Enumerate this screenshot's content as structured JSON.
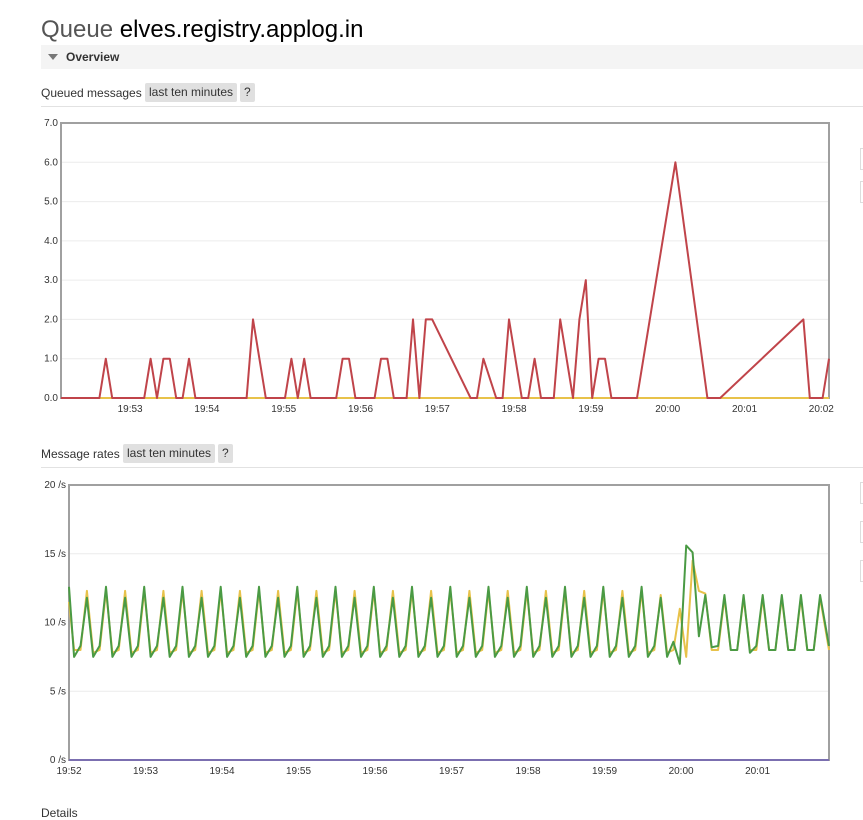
{
  "header": {
    "prefix": "Queue",
    "name": "elves.registry.applog.in"
  },
  "overview": {
    "label": "Overview"
  },
  "queued_section": {
    "label": "Queued messages",
    "range": "last ten minutes",
    "help": "?"
  },
  "rates_section": {
    "label": "Message rates",
    "range": "last ten minutes",
    "help": "?"
  },
  "details_label": "Details",
  "colors": {
    "red": "#c0444a",
    "yellow": "#e8c24a",
    "green": "#4a9a44",
    "purple": "#7b6fb0"
  },
  "chart_data": [
    {
      "type": "line",
      "title": "",
      "ylim": [
        0,
        7
      ],
      "yticks": [
        "0.0",
        "1.0",
        "2.0",
        "3.0",
        "4.0",
        "5.0",
        "6.0",
        "7.0"
      ],
      "xticks": [
        "19:53",
        "19:54",
        "19:55",
        "19:56",
        "19:57",
        "19:58",
        "19:59",
        "20:00",
        "20:01",
        "20:02"
      ],
      "xstart": "19:52:06",
      "xend": "20:02:06",
      "grid": true,
      "series": [
        {
          "color": "#e8c24a",
          "times": [
            "19:52:06",
            "20:02:06"
          ],
          "values": [
            0,
            0
          ]
        },
        {
          "color": "#c0444a",
          "times": [
            "19:52:06",
            "19:52:36",
            "19:52:41",
            "19:52:46",
            "19:53:11",
            "19:53:16",
            "19:53:21",
            "19:53:26",
            "19:53:31",
            "19:53:36",
            "19:53:41",
            "19:53:46",
            "19:53:51",
            "19:54:31",
            "19:54:36",
            "19:54:41",
            "19:54:46",
            "19:55:01",
            "19:55:06",
            "19:55:11",
            "19:55:16",
            "19:55:21",
            "19:55:41",
            "19:55:46",
            "19:55:51",
            "19:55:56",
            "19:56:11",
            "19:56:16",
            "19:56:21",
            "19:56:26",
            "19:56:36",
            "19:56:41",
            "19:56:46",
            "19:56:51",
            "19:56:56",
            "19:57:26",
            "19:57:31",
            "19:57:36",
            "19:57:46",
            "19:57:51",
            "19:57:56",
            "19:58:06",
            "19:58:11",
            "19:58:16",
            "19:58:21",
            "19:58:31",
            "19:58:36",
            "19:58:41",
            "19:58:46",
            "19:58:51",
            "19:58:56",
            "19:59:01",
            "19:59:06",
            "19:59:11",
            "19:59:16",
            "19:59:26",
            "19:59:36",
            "19:59:41",
            "20:00:06",
            "20:00:31",
            "20:00:36",
            "20:00:41",
            "20:01:46",
            "20:01:51",
            "20:01:56",
            "20:02:01",
            "20:02:06"
          ],
          "values": [
            0,
            0,
            1,
            0,
            0,
            1,
            0,
            1,
            1,
            0,
            0,
            1,
            0,
            0,
            2,
            1,
            0,
            0,
            1,
            0,
            1,
            0,
            0,
            1,
            1,
            0,
            0,
            1,
            1,
            0,
            0,
            2,
            0,
            2,
            2,
            0,
            0,
            1,
            0,
            0,
            2,
            0,
            0,
            1,
            0,
            0,
            2,
            1,
            0,
            2,
            3,
            0,
            1,
            1,
            0,
            0,
            0,
            1,
            6,
            0,
            0,
            0,
            2,
            0,
            0,
            0,
            1
          ]
        }
      ]
    },
    {
      "type": "line",
      "title": "",
      "ylim": [
        0,
        20
      ],
      "yticks": [
        "0 /s",
        "5 /s",
        "10 /s",
        "15 /s",
        "20 /s"
      ],
      "xticks": [
        "19:52",
        "19:53",
        "19:54",
        "19:55",
        "19:56",
        "19:57",
        "19:58",
        "19:59",
        "20:00",
        "20:01"
      ],
      "xstart": "19:52:00",
      "xend": "20:01:56",
      "grid": true,
      "series": [
        {
          "color": "#7b6fb0",
          "times": [
            "19:52:00",
            "20:01:56"
          ],
          "values": [
            0,
            0
          ]
        },
        {
          "color": "#e8c24a",
          "times": [
            "19:52:00",
            "19:52:04",
            "19:52:09",
            "19:52:14",
            "19:52:19",
            "19:52:24",
            "19:52:29",
            "19:52:34",
            "19:52:39",
            "19:52:44",
            "19:52:49",
            "19:52:54",
            "19:52:59",
            "19:53:04",
            "19:53:09",
            "19:53:14",
            "19:53:19",
            "19:53:24",
            "19:53:29",
            "19:53:34",
            "19:53:39",
            "19:53:44",
            "19:53:49",
            "19:53:54",
            "19:53:59",
            "19:54:04",
            "19:54:09",
            "19:54:14",
            "19:54:19",
            "19:54:24",
            "19:54:29",
            "19:54:34",
            "19:54:39",
            "19:54:44",
            "19:54:49",
            "19:54:54",
            "19:54:59",
            "19:55:04",
            "19:55:09",
            "19:55:14",
            "19:55:19",
            "19:55:24",
            "19:55:29",
            "19:55:34",
            "19:55:39",
            "19:55:44",
            "19:55:49",
            "19:55:54",
            "19:55:59",
            "19:56:04",
            "19:56:09",
            "19:56:14",
            "19:56:19",
            "19:56:24",
            "19:56:29",
            "19:56:34",
            "19:56:39",
            "19:56:44",
            "19:56:49",
            "19:56:54",
            "19:56:59",
            "19:57:04",
            "19:57:09",
            "19:57:14",
            "19:57:19",
            "19:57:24",
            "19:57:29",
            "19:57:34",
            "19:57:39",
            "19:57:44",
            "19:57:49",
            "19:57:54",
            "19:57:59",
            "19:58:04",
            "19:58:09",
            "19:58:14",
            "19:58:19",
            "19:58:24",
            "19:58:29",
            "19:58:34",
            "19:58:39",
            "19:58:44",
            "19:58:49",
            "19:58:54",
            "19:58:59",
            "19:59:04",
            "19:59:09",
            "19:59:14",
            "19:59:19",
            "19:59:24",
            "19:59:29",
            "19:59:34",
            "19:59:39",
            "19:59:44",
            "19:59:49",
            "19:59:54",
            "19:59:59",
            "20:00:04",
            "20:00:09",
            "20:00:14",
            "20:00:19",
            "20:00:24",
            "20:00:29",
            "20:00:34",
            "20:00:39",
            "20:00:44",
            "20:00:49",
            "20:00:54",
            "20:00:59",
            "20:01:04",
            "20:01:09",
            "20:01:14",
            "20:01:19",
            "20:01:24",
            "20:01:29",
            "20:01:34",
            "20:01:39",
            "20:01:44",
            "20:01:49",
            "20:01:56"
          ],
          "values": [
            11.5,
            8,
            8,
            12.3,
            7.8,
            8,
            12.3,
            7.8,
            8,
            12.3,
            7.8,
            8,
            12.3,
            7.8,
            8,
            12.3,
            7.8,
            8,
            12.3,
            7.8,
            8,
            12.3,
            7.8,
            8,
            12.3,
            7.8,
            8,
            12.3,
            7.8,
            8,
            12.3,
            7.8,
            8,
            12.3,
            7.8,
            8,
            12.3,
            7.8,
            8,
            12.3,
            7.8,
            8,
            12.3,
            7.8,
            8,
            12.3,
            7.8,
            8,
            12.3,
            7.8,
            8,
            12.3,
            7.8,
            8,
            12.3,
            7.8,
            8,
            12.3,
            7.8,
            8,
            12.3,
            7.8,
            8,
            12.3,
            7.8,
            8,
            12.3,
            7.8,
            8,
            12.3,
            7.8,
            8,
            12.3,
            7.8,
            8,
            12.3,
            7.8,
            8,
            12.3,
            7.8,
            8,
            12.3,
            7.8,
            8,
            12.3,
            7.8,
            8,
            12.3,
            7.8,
            8,
            12.3,
            7.8,
            8,
            12,
            7.8,
            8,
            11,
            7.5,
            14.5,
            12.3,
            12.1,
            8,
            8,
            11.8,
            8,
            8,
            11.8,
            8,
            8,
            11.8,
            8,
            8,
            11.8,
            8,
            8,
            11.8,
            8,
            8,
            11.8,
            8
          ]
        },
        {
          "color": "#4a9a44",
          "times": [
            "19:52:00",
            "19:52:04",
            "19:52:09",
            "19:52:14",
            "19:52:19",
            "19:52:24",
            "19:52:29",
            "19:52:34",
            "19:52:39",
            "19:52:44",
            "19:52:49",
            "19:52:54",
            "19:52:59",
            "19:53:04",
            "19:53:09",
            "19:53:14",
            "19:53:19",
            "19:53:24",
            "19:53:29",
            "19:53:34",
            "19:53:39",
            "19:53:44",
            "19:53:49",
            "19:53:54",
            "19:53:59",
            "19:54:04",
            "19:54:09",
            "19:54:14",
            "19:54:19",
            "19:54:24",
            "19:54:29",
            "19:54:34",
            "19:54:39",
            "19:54:44",
            "19:54:49",
            "19:54:54",
            "19:54:59",
            "19:55:04",
            "19:55:09",
            "19:55:14",
            "19:55:19",
            "19:55:24",
            "19:55:29",
            "19:55:34",
            "19:55:39",
            "19:55:44",
            "19:55:49",
            "19:55:54",
            "19:55:59",
            "19:56:04",
            "19:56:09",
            "19:56:14",
            "19:56:19",
            "19:56:24",
            "19:56:29",
            "19:56:34",
            "19:56:39",
            "19:56:44",
            "19:56:49",
            "19:56:54",
            "19:56:59",
            "19:57:04",
            "19:57:09",
            "19:57:14",
            "19:57:19",
            "19:57:24",
            "19:57:29",
            "19:57:34",
            "19:57:39",
            "19:57:44",
            "19:57:49",
            "19:57:54",
            "19:57:59",
            "19:58:04",
            "19:58:09",
            "19:58:14",
            "19:58:19",
            "19:58:24",
            "19:58:29",
            "19:58:34",
            "19:58:39",
            "19:58:44",
            "19:58:49",
            "19:58:54",
            "19:58:59",
            "19:59:04",
            "19:59:09",
            "19:59:14",
            "19:59:19",
            "19:59:24",
            "19:59:29",
            "19:59:34",
            "19:59:39",
            "19:59:44",
            "19:59:49",
            "19:59:54",
            "19:59:59",
            "20:00:04",
            "20:00:09",
            "20:00:14",
            "20:00:19",
            "20:00:24",
            "20:00:29",
            "20:00:34",
            "20:00:39",
            "20:00:44",
            "20:00:49",
            "20:00:54",
            "20:00:59",
            "20:01:04",
            "20:01:09",
            "20:01:14",
            "20:01:19",
            "20:01:24",
            "20:01:29",
            "20:01:34",
            "20:01:39",
            "20:01:44",
            "20:01:49",
            "20:01:56"
          ],
          "values": [
            12.6,
            7.5,
            8.3,
            11.8,
            7.5,
            8.3,
            12.6,
            7.5,
            8.3,
            11.8,
            7.5,
            8.3,
            12.6,
            7.5,
            8.3,
            11.8,
            7.5,
            8.3,
            12.6,
            7.5,
            8.3,
            11.8,
            7.5,
            8.3,
            12.6,
            7.5,
            8.3,
            11.8,
            7.5,
            8.3,
            12.6,
            7.5,
            8.3,
            11.8,
            7.5,
            8.3,
            12.6,
            7.5,
            8.3,
            11.8,
            7.5,
            8.3,
            12.6,
            7.5,
            8.3,
            11.8,
            7.5,
            8.3,
            12.6,
            7.5,
            8.3,
            11.8,
            7.5,
            8.3,
            12.6,
            7.5,
            8.3,
            11.8,
            7.5,
            8.3,
            12.6,
            7.5,
            8.3,
            11.8,
            7.5,
            8.3,
            12.6,
            7.5,
            8.3,
            11.8,
            7.5,
            8.3,
            12.6,
            7.5,
            8.3,
            11.8,
            7.5,
            8.3,
            12.6,
            7.5,
            8.3,
            11.8,
            7.5,
            8.3,
            12.6,
            7.5,
            8.3,
            11.8,
            7.5,
            8.3,
            12.6,
            7.5,
            8.3,
            11.8,
            7.5,
            8.6,
            7,
            15.6,
            15.1,
            9,
            12,
            8.2,
            8.3,
            12,
            8,
            8,
            12,
            7.8,
            8.3,
            12,
            8,
            8,
            12,
            8,
            8,
            12,
            8,
            8,
            12,
            8.3
          ]
        }
      ]
    }
  ]
}
